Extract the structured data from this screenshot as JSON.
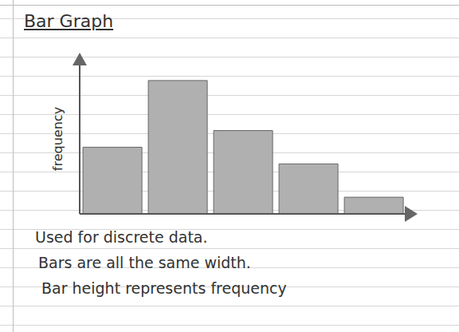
{
  "chart_data": {
    "type": "bar",
    "title": "Bar Graph",
    "y_label": "frequency",
    "categories": [
      null,
      null,
      null,
      null,
      null
    ],
    "values": [
      4,
      8,
      5,
      3,
      1
    ],
    "color": "#b0b0b0",
    "ylim": [
      0,
      9
    ],
    "tick_labels": false,
    "grid": false,
    "annotations": [
      "Used for discrete data.",
      "Bars are all the same width.",
      "Bar height represents frequency"
    ]
  }
}
